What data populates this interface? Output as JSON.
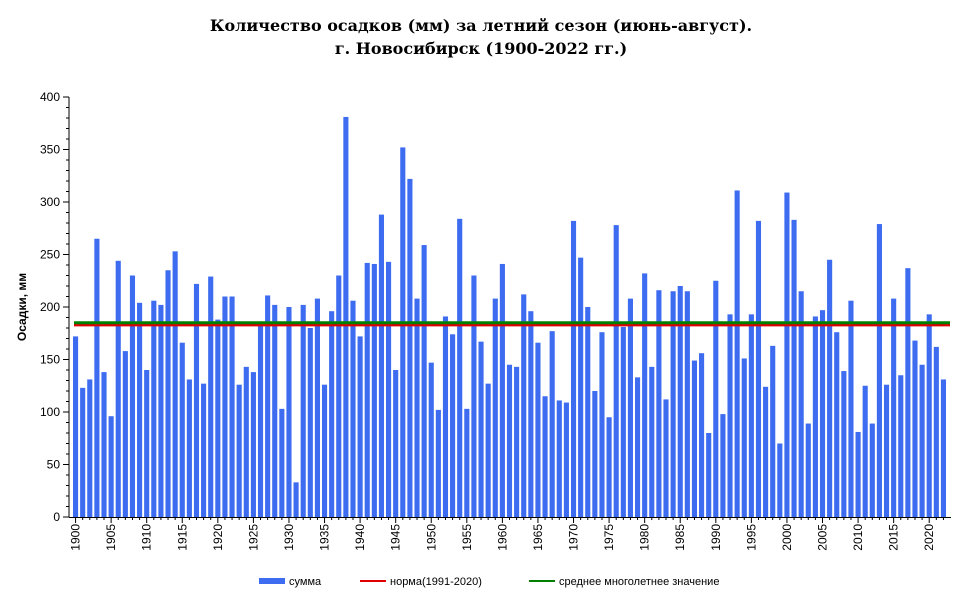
{
  "chart_data": {
    "type": "bar",
    "title_line1": "Количество осадков (мм) за летний сезон (июнь-август).",
    "title_line2": "г. Новосибирск (1900-2022 гг.)",
    "ylabel": "Осадки, мм",
    "xlabel": "",
    "ylim": [
      0,
      400
    ],
    "y_ticks": [
      0,
      50,
      100,
      150,
      200,
      250,
      300,
      350,
      400
    ],
    "x_tick_labels": [
      "1900",
      "1905",
      "1910",
      "1915",
      "1920",
      "1925",
      "1930",
      "1935",
      "1940",
      "1945",
      "1950",
      "1955",
      "1960",
      "1965",
      "1970",
      "1975",
      "1980",
      "1985",
      "1990",
      "1995",
      "2000",
      "2005",
      "2010",
      "2015",
      "2020"
    ],
    "grid": false,
    "legend_position": "bottom",
    "years": [
      1900,
      1901,
      1902,
      1903,
      1904,
      1905,
      1906,
      1907,
      1908,
      1909,
      1910,
      1911,
      1912,
      1913,
      1914,
      1915,
      1916,
      1917,
      1918,
      1919,
      1920,
      1921,
      1922,
      1923,
      1924,
      1925,
      1926,
      1927,
      1928,
      1929,
      1930,
      1931,
      1932,
      1933,
      1934,
      1935,
      1936,
      1937,
      1938,
      1939,
      1940,
      1941,
      1942,
      1943,
      1944,
      1945,
      1946,
      1947,
      1948,
      1949,
      1950,
      1951,
      1952,
      1953,
      1954,
      1955,
      1956,
      1957,
      1958,
      1959,
      1960,
      1961,
      1962,
      1963,
      1964,
      1965,
      1966,
      1967,
      1968,
      1969,
      1970,
      1971,
      1972,
      1973,
      1974,
      1975,
      1976,
      1977,
      1978,
      1979,
      1980,
      1981,
      1982,
      1983,
      1984,
      1985,
      1986,
      1987,
      1988,
      1989,
      1990,
      1991,
      1992,
      1993,
      1994,
      1995,
      1996,
      1997,
      1998,
      1999,
      2000,
      2001,
      2002,
      2003,
      2004,
      2005,
      2006,
      2007,
      2008,
      2009,
      2010,
      2011,
      2012,
      2013,
      2014,
      2015,
      2016,
      2017,
      2018,
      2019,
      2020,
      2021,
      2022
    ],
    "series": [
      {
        "name": "сумма",
        "color": "#3e6cf0",
        "values": [
          172,
          123,
          131,
          265,
          138,
          96,
          244,
          158,
          230,
          204,
          140,
          206,
          202,
          235,
          253,
          166,
          131,
          222,
          127,
          229,
          188,
          210,
          210,
          126,
          143,
          138,
          184,
          211,
          202,
          103,
          200,
          33,
          202,
          180,
          208,
          126,
          196,
          230,
          381,
          206,
          172,
          242,
          241,
          288,
          243,
          140,
          352,
          322,
          208,
          259,
          147,
          102,
          191,
          174,
          284,
          103,
          230,
          167,
          127,
          208,
          241,
          145,
          143,
          212,
          196,
          166,
          115,
          177,
          111,
          109,
          282,
          247,
          200,
          120,
          176,
          95,
          278,
          181,
          208,
          133,
          232,
          143,
          216,
          112,
          215,
          220,
          215,
          149,
          156,
          80,
          225,
          98,
          193,
          311,
          151,
          193,
          282,
          124,
          163,
          70,
          309,
          283,
          215,
          89,
          191,
          197,
          245,
          176,
          139,
          206,
          81,
          125,
          89,
          279,
          126,
          208,
          135,
          237,
          168,
          145,
          193,
          162,
          131
        ]
      }
    ],
    "reference_lines": [
      {
        "name": "норма(1991-2020)",
        "value": 183,
        "color": "#e00000"
      },
      {
        "name": "среднее многолетнее значение",
        "value": 185,
        "color": "#008000"
      }
    ]
  }
}
